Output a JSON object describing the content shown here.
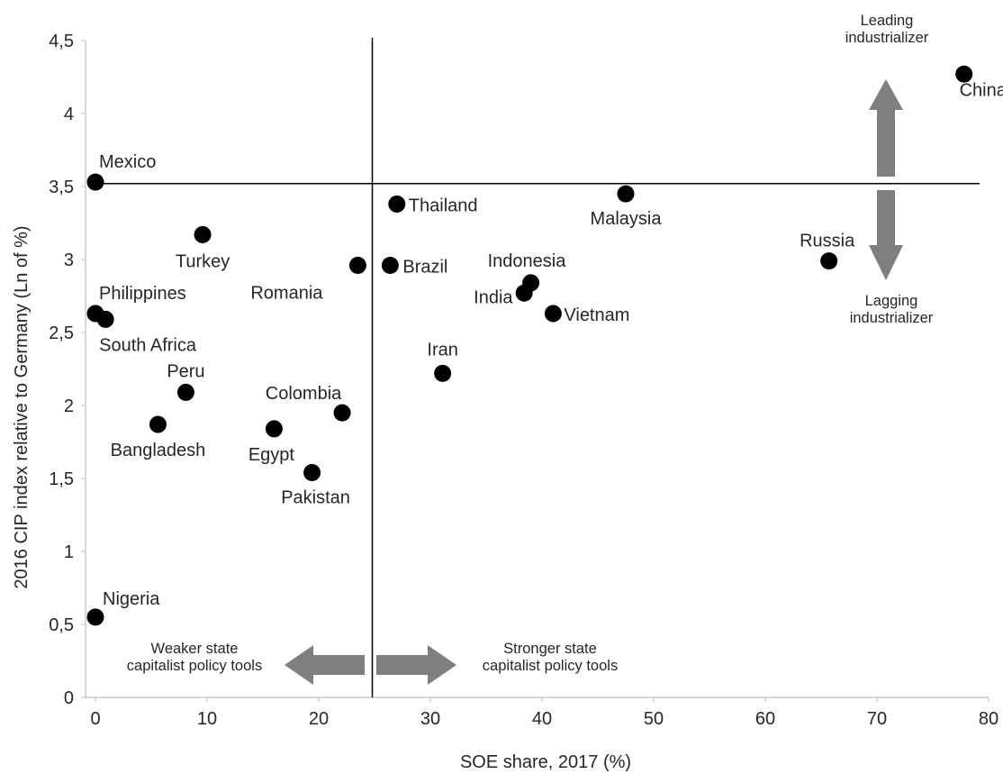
{
  "chart_data": {
    "type": "scatter",
    "title": "",
    "xlabel": "SOE share, 2017 (%)",
    "ylabel": "2016 CIP index relative to Germany (Ln of %)",
    "xlim": [
      0,
      80
    ],
    "ylim": [
      0,
      4.5
    ],
    "xticks": [
      0,
      10,
      20,
      30,
      40,
      50,
      60,
      70,
      80
    ],
    "xtick_labels": [
      "0",
      "10",
      "20",
      "30",
      "40",
      "50",
      "60",
      "70",
      "80"
    ],
    "yticks": [
      0,
      0.5,
      1,
      1.5,
      2,
      2.5,
      3,
      3.5,
      4,
      4.5
    ],
    "ytick_labels": [
      "0",
      "0,5",
      "1",
      "1,5",
      "2",
      "2,5",
      "3",
      "3,5",
      "4",
      "4,5"
    ],
    "grid": false,
    "legend": "none",
    "marker_color": "#000000",
    "reference_lines": {
      "vertical_x": 24.8,
      "horizontal_y": 3.52
    },
    "points": [
      {
        "label": "China",
        "x": 77.8,
        "y": 4.27
      },
      {
        "label": "Mexico",
        "x": 0.0,
        "y": 3.53
      },
      {
        "label": "Malaysia",
        "x": 47.5,
        "y": 3.45
      },
      {
        "label": "Thailand",
        "x": 27.0,
        "y": 3.38
      },
      {
        "label": "Turkey",
        "x": 9.6,
        "y": 3.17
      },
      {
        "label": "Russia",
        "x": 65.7,
        "y": 2.99
      },
      {
        "label": "Romania",
        "x": 23.5,
        "y": 2.96
      },
      {
        "label": "Brazil",
        "x": 26.4,
        "y": 2.96
      },
      {
        "label": "Indonesia",
        "x": 39.0,
        "y": 2.84
      },
      {
        "label": "India",
        "x": 38.4,
        "y": 2.77
      },
      {
        "label": "Vietnam",
        "x": 41.0,
        "y": 2.63
      },
      {
        "label": "Philippines",
        "x": 0.0,
        "y": 2.63
      },
      {
        "label": "South Africa",
        "x": 0.9,
        "y": 2.59
      },
      {
        "label": "Iran",
        "x": 31.1,
        "y": 2.22
      },
      {
        "label": "Peru",
        "x": 8.1,
        "y": 2.09
      },
      {
        "label": "Colombia",
        "x": 22.1,
        "y": 1.95
      },
      {
        "label": "Bangladesh",
        "x": 5.6,
        "y": 1.87
      },
      {
        "label": "Egypt",
        "x": 16.0,
        "y": 1.84
      },
      {
        "label": "Pakistan",
        "x": 19.4,
        "y": 1.54
      },
      {
        "label": "Nigeria",
        "x": 0.0,
        "y": 0.55
      }
    ],
    "annotations": {
      "leading": [
        "Leading",
        "industrializer"
      ],
      "lagging": [
        "Lagging",
        "industrializer"
      ],
      "weaker": [
        "Weaker state",
        "capitalist policy tools"
      ],
      "stronger": [
        "Stronger state",
        "capitalist policy tools"
      ]
    },
    "arrow_color": "#7f7f7f"
  }
}
